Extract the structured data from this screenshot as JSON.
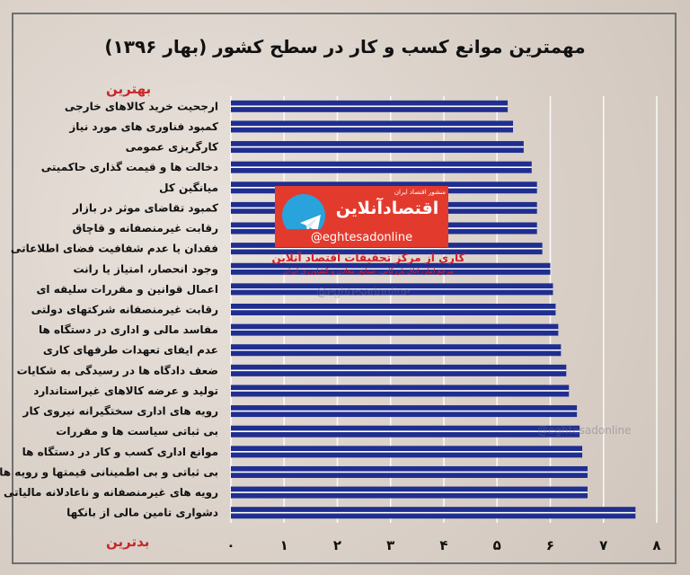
{
  "header": {
    "title": "مهمترین موانع کسب و کار در سطح کشور (بهار ۱۳۹۶)"
  },
  "labels": {
    "best": "بهترین",
    "worst": "بدترین"
  },
  "branding": {
    "small_text": "منشور اقتصاد ایران",
    "brand_name": "اقتصادآنلاین",
    "handle": "@eghtesadonline",
    "subtitle_1": "کاری از مرکز تحقیقات اقتصاد آنلاین",
    "subtitle_2": "مرجع آمار: اتاق بازرگانی، صنایع، معادن و کشاورزی ایران",
    "watermark_1": "@eghtesadonline",
    "watermark_2": "@eghtesadonline",
    "telegram_icon": "telegram-icon"
  },
  "chart_data": {
    "type": "bar",
    "orientation": "horizontal",
    "title": "مهمترین موانع کسب و کار در سطح کشور (بهار ۱۳۹۶)",
    "categories": [
      "ارجحیت خرید کالاهای خارجی",
      "کمبود فناوری های مورد نیاز",
      "کارگریزی عمومی",
      "دخالت ها و قیمت گذاری حاکمیتی",
      "میانگین کل",
      "کمبود تقاضای موثر در بازار",
      "رقابت غیرمنصفانه و قاچاق",
      "فقدان یا عدم شفافیت فضای اطلاعاتی",
      "وجود انحصار، امتیاز یا رانت",
      "اعمال قوانین و مقررات سلیقه ای",
      "رقابت غیرمنصفانه شرکتهای دولتی",
      "مفاسد مالی و اداری در دستگاه ها",
      "عدم ایفای تعهدات طرفهای کاری",
      "ضعف دادگاه ها در رسیدگی به شکایات",
      "تولید و عرضه کالاهای غیراستاندارد",
      "رویه های اداری سختگیرانه نیروی کار",
      "بی ثباتی سیاست ها و مقررات",
      "موانع اداری کسب و کار در دستگاه ها",
      "بی ثباتی و بی اطمینانی قیمتها و رویه ها",
      "رویه های غیرمنصفانه و ناعادلانه مالیاتی",
      "دشواری تامین مالی از بانکها"
    ],
    "values": [
      5.2,
      5.3,
      5.5,
      5.65,
      5.75,
      5.75,
      5.75,
      5.85,
      6.0,
      6.05,
      6.1,
      6.15,
      6.2,
      6.3,
      6.35,
      6.5,
      6.55,
      6.6,
      6.7,
      6.7,
      7.6
    ],
    "x_ticks": [
      "۰",
      "۱",
      "۲",
      "۳",
      "۴",
      "۵",
      "۶",
      "۷",
      "۸"
    ],
    "xlim": [
      0,
      8
    ],
    "grid": true,
    "colors": {
      "bar": "#1f2e8f",
      "bar_stripe": "#ffffff",
      "grid": "#ffffff"
    }
  }
}
